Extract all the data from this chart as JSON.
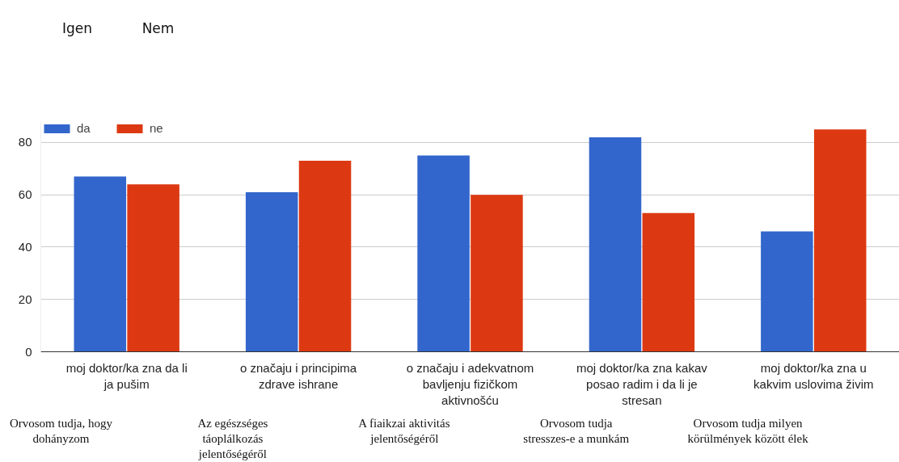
{
  "chart_data": {
    "type": "bar",
    "categories": [
      "moj doktor/ka zna da li ja pušim",
      "o značaju i principima zdrave ishrane",
      "o značaju i adekvatnom bavljenju fizičkom aktivnošću",
      "moj doktor/ka zna kakav posao radim i da li je stresan",
      "moj doktor/ka zna u kakvim uslovima živim"
    ],
    "series": [
      {
        "name": "da",
        "color": "#3366cc",
        "values": [
          67,
          61,
          75,
          82,
          46
        ]
      },
      {
        "name": "ne",
        "color": "#dc3912",
        "values": [
          64,
          73,
          60,
          53,
          85
        ]
      }
    ],
    "ylim": [
      0,
      88
    ],
    "yticks": [
      0,
      20,
      40,
      60,
      80
    ],
    "grid": "y",
    "legend": "top left",
    "annotations": [
      "Igen",
      "Nem",
      "Orvosom tudja, hogy dohányzom",
      "Az egészséges táoplálkozás jelentőségéről",
      "A fiaikzai aktivitás jelentőségéről",
      "Orvosom tudja stresszes-e a munkám",
      "Orvosom tudja milyen körülmények között élek"
    ]
  }
}
